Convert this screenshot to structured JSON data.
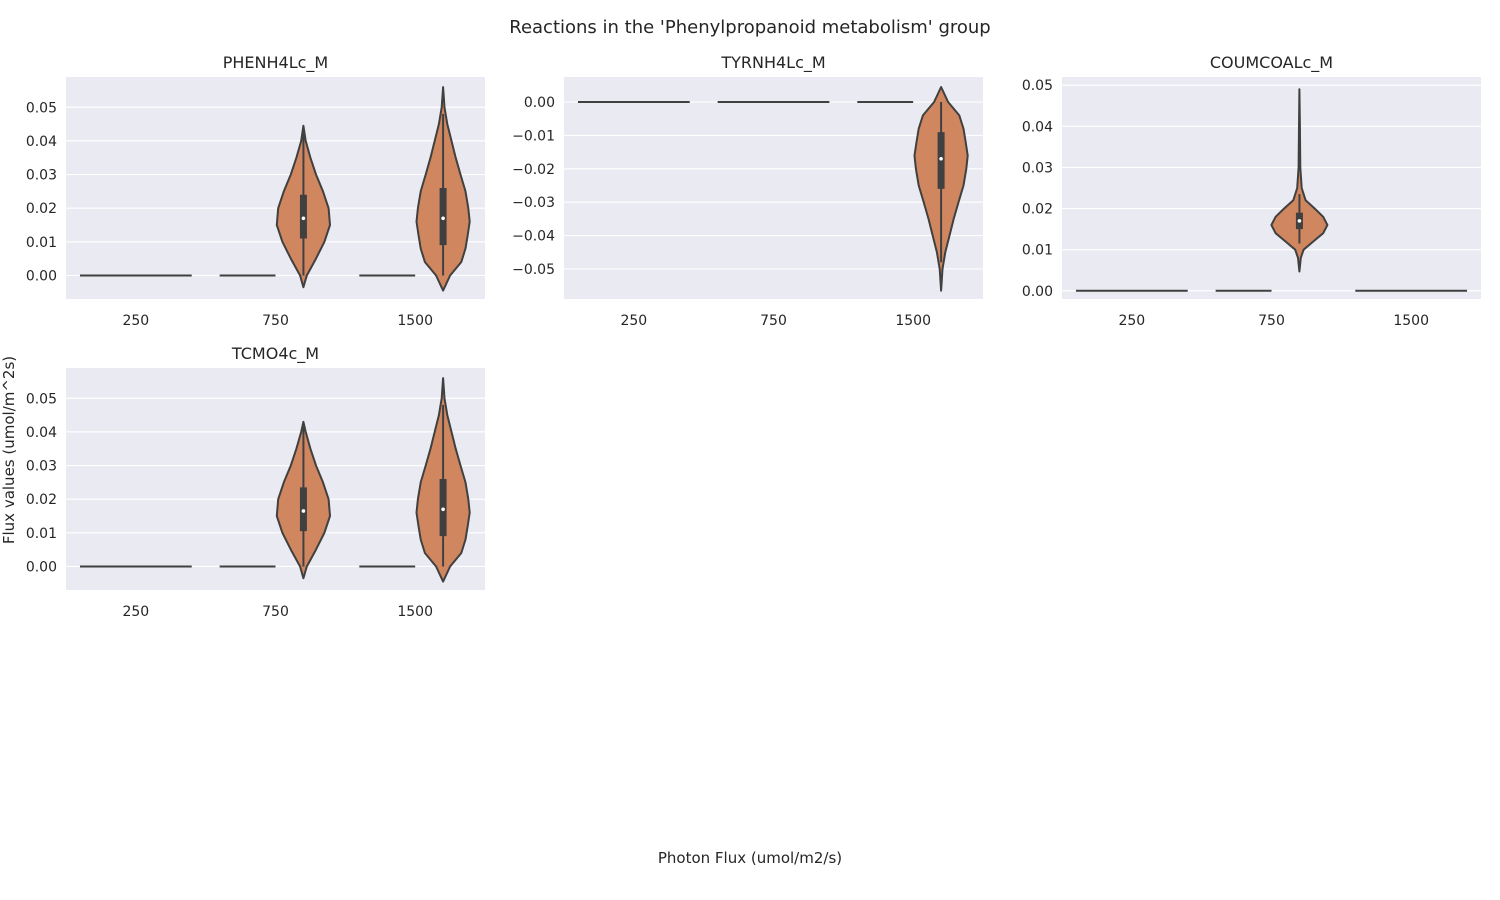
{
  "figure": {
    "title": "Reactions in the 'Phenylpropanoid metabolism' group",
    "xlabel": "Photon Flux (umol/m2/s)",
    "ylabel": "Flux values (umol/m^2s)"
  },
  "colors": {
    "panel_bg": "#eaeaf2",
    "grid": "#ffffff",
    "violin_fill": "#d0875f",
    "violin_edge": "#404040",
    "text": "#262626"
  },
  "chart_data": [
    {
      "type": "violin",
      "title": "PHENH4Lc_M",
      "categories": [
        "250",
        "750",
        "1500"
      ],
      "ylim": [
        -0.007,
        0.059
      ],
      "yticks": [
        0.0,
        0.01,
        0.02,
        0.03,
        0.04,
        0.05
      ],
      "ytick_labels": [
        "0.00",
        "0.01",
        "0.02",
        "0.03",
        "0.04",
        "0.05"
      ],
      "grid": true,
      "series": [
        {
          "category": "250",
          "constant": 0.0
        },
        {
          "category": "750",
          "constant": 0.0
        },
        {
          "category": "1500",
          "constant": 0.0
        },
        {
          "category": "750",
          "median": 0.017,
          "q1": 0.011,
          "q3": 0.024,
          "whisker_low": 0.0,
          "whisker_high": 0.044,
          "min": -0.0035,
          "max": 0.0445,
          "density": [
            [
              -0.0035,
              0.0
            ],
            [
              0.0,
              0.12
            ],
            [
              0.005,
              0.45
            ],
            [
              0.01,
              0.75
            ],
            [
              0.015,
              0.95
            ],
            [
              0.02,
              0.9
            ],
            [
              0.025,
              0.7
            ],
            [
              0.03,
              0.45
            ],
            [
              0.035,
              0.25
            ],
            [
              0.04,
              0.08
            ],
            [
              0.0445,
              0.0
            ]
          ]
        },
        {
          "category": "1500",
          "median": 0.017,
          "q1": 0.009,
          "q3": 0.026,
          "whisker_low": 0.0,
          "whisker_high": 0.048,
          "min": -0.0045,
          "max": 0.056,
          "density": [
            [
              -0.0045,
              0.0
            ],
            [
              0.0,
              0.25
            ],
            [
              0.004,
              0.65
            ],
            [
              0.008,
              0.8
            ],
            [
              0.012,
              0.88
            ],
            [
              0.016,
              0.95
            ],
            [
              0.02,
              0.9
            ],
            [
              0.025,
              0.8
            ],
            [
              0.03,
              0.62
            ],
            [
              0.035,
              0.45
            ],
            [
              0.04,
              0.3
            ],
            [
              0.045,
              0.15
            ],
            [
              0.05,
              0.05
            ],
            [
              0.056,
              0.0
            ]
          ]
        }
      ]
    },
    {
      "type": "violin",
      "title": "TYRNH4Lc_M",
      "categories": [
        "250",
        "750",
        "1500"
      ],
      "ylim": [
        -0.059,
        0.0075
      ],
      "yticks": [
        0.0,
        -0.01,
        -0.02,
        -0.03,
        -0.04,
        -0.05
      ],
      "ytick_labels": [
        "0.00",
        "−0.01",
        "−0.02",
        "−0.03",
        "−0.04",
        "−0.05"
      ],
      "grid": true,
      "series": [
        {
          "category": "250",
          "constant": 0.0
        },
        {
          "category": "750",
          "constant": 0.0
        },
        {
          "category": "1500",
          "constant": 0.0
        },
        {
          "category": "1500",
          "median": -0.017,
          "q1": -0.026,
          "q3": -0.009,
          "whisker_low": -0.048,
          "whisker_high": 0.0,
          "min": -0.0565,
          "max": 0.0045,
          "density": [
            [
              -0.0565,
              0.0
            ],
            [
              -0.05,
              0.05
            ],
            [
              -0.045,
              0.15
            ],
            [
              -0.04,
              0.3
            ],
            [
              -0.035,
              0.45
            ],
            [
              -0.03,
              0.62
            ],
            [
              -0.025,
              0.8
            ],
            [
              -0.02,
              0.9
            ],
            [
              -0.016,
              0.95
            ],
            [
              -0.012,
              0.88
            ],
            [
              -0.008,
              0.8
            ],
            [
              -0.004,
              0.65
            ],
            [
              0.0,
              0.25
            ],
            [
              0.0045,
              0.0
            ]
          ]
        }
      ]
    },
    {
      "type": "violin",
      "title": "COUMCOALc_M",
      "categories": [
        "250",
        "750",
        "1500"
      ],
      "ylim": [
        -0.002,
        0.052
      ],
      "yticks": [
        0.0,
        0.01,
        0.02,
        0.03,
        0.04,
        0.05
      ],
      "ytick_labels": [
        "0.00",
        "0.01",
        "0.02",
        "0.03",
        "0.04",
        "0.05"
      ],
      "grid": true,
      "series": [
        {
          "category": "250",
          "constant": 0.0
        },
        {
          "category": "750",
          "constant": 0.0
        },
        {
          "category": "1500",
          "constant": 0.0
        },
        {
          "category": "750",
          "median": 0.017,
          "q1": 0.015,
          "q3": 0.019,
          "whisker_low": 0.0115,
          "whisker_high": 0.0235,
          "min": 0.0047,
          "max": 0.049,
          "density": [
            [
              0.0047,
              0.0
            ],
            [
              0.008,
              0.05
            ],
            [
              0.01,
              0.15
            ],
            [
              0.012,
              0.5
            ],
            [
              0.014,
              0.85
            ],
            [
              0.016,
              1.0
            ],
            [
              0.018,
              0.85
            ],
            [
              0.02,
              0.55
            ],
            [
              0.022,
              0.22
            ],
            [
              0.025,
              0.08
            ],
            [
              0.03,
              0.03
            ],
            [
              0.04,
              0.015
            ],
            [
              0.049,
              0.0
            ]
          ]
        }
      ]
    },
    {
      "type": "violin",
      "title": "TCMO4c_M",
      "categories": [
        "250",
        "750",
        "1500"
      ],
      "ylim": [
        -0.007,
        0.059
      ],
      "yticks": [
        0.0,
        0.01,
        0.02,
        0.03,
        0.04,
        0.05
      ],
      "ytick_labels": [
        "0.00",
        "0.01",
        "0.02",
        "0.03",
        "0.04",
        "0.05"
      ],
      "grid": true,
      "series": [
        {
          "category": "250",
          "constant": 0.0
        },
        {
          "category": "750",
          "constant": 0.0
        },
        {
          "category": "1500",
          "constant": 0.0
        },
        {
          "category": "750",
          "median": 0.0165,
          "q1": 0.0105,
          "q3": 0.0235,
          "whisker_low": 0.0,
          "whisker_high": 0.043,
          "min": -0.0035,
          "max": 0.043,
          "density": [
            [
              -0.0035,
              0.0
            ],
            [
              0.0,
              0.12
            ],
            [
              0.005,
              0.45
            ],
            [
              0.01,
              0.75
            ],
            [
              0.015,
              0.95
            ],
            [
              0.02,
              0.9
            ],
            [
              0.025,
              0.7
            ],
            [
              0.03,
              0.45
            ],
            [
              0.035,
              0.25
            ],
            [
              0.04,
              0.08
            ],
            [
              0.043,
              0.0
            ]
          ]
        },
        {
          "category": "1500",
          "median": 0.017,
          "q1": 0.009,
          "q3": 0.026,
          "whisker_low": 0.0,
          "whisker_high": 0.048,
          "min": -0.0045,
          "max": 0.056,
          "density": [
            [
              -0.0045,
              0.0
            ],
            [
              0.0,
              0.25
            ],
            [
              0.004,
              0.65
            ],
            [
              0.008,
              0.8
            ],
            [
              0.012,
              0.88
            ],
            [
              0.016,
              0.95
            ],
            [
              0.02,
              0.9
            ],
            [
              0.025,
              0.8
            ],
            [
              0.03,
              0.62
            ],
            [
              0.035,
              0.45
            ],
            [
              0.04,
              0.3
            ],
            [
              0.045,
              0.15
            ],
            [
              0.05,
              0.05
            ],
            [
              0.056,
              0.0
            ]
          ]
        }
      ]
    }
  ]
}
